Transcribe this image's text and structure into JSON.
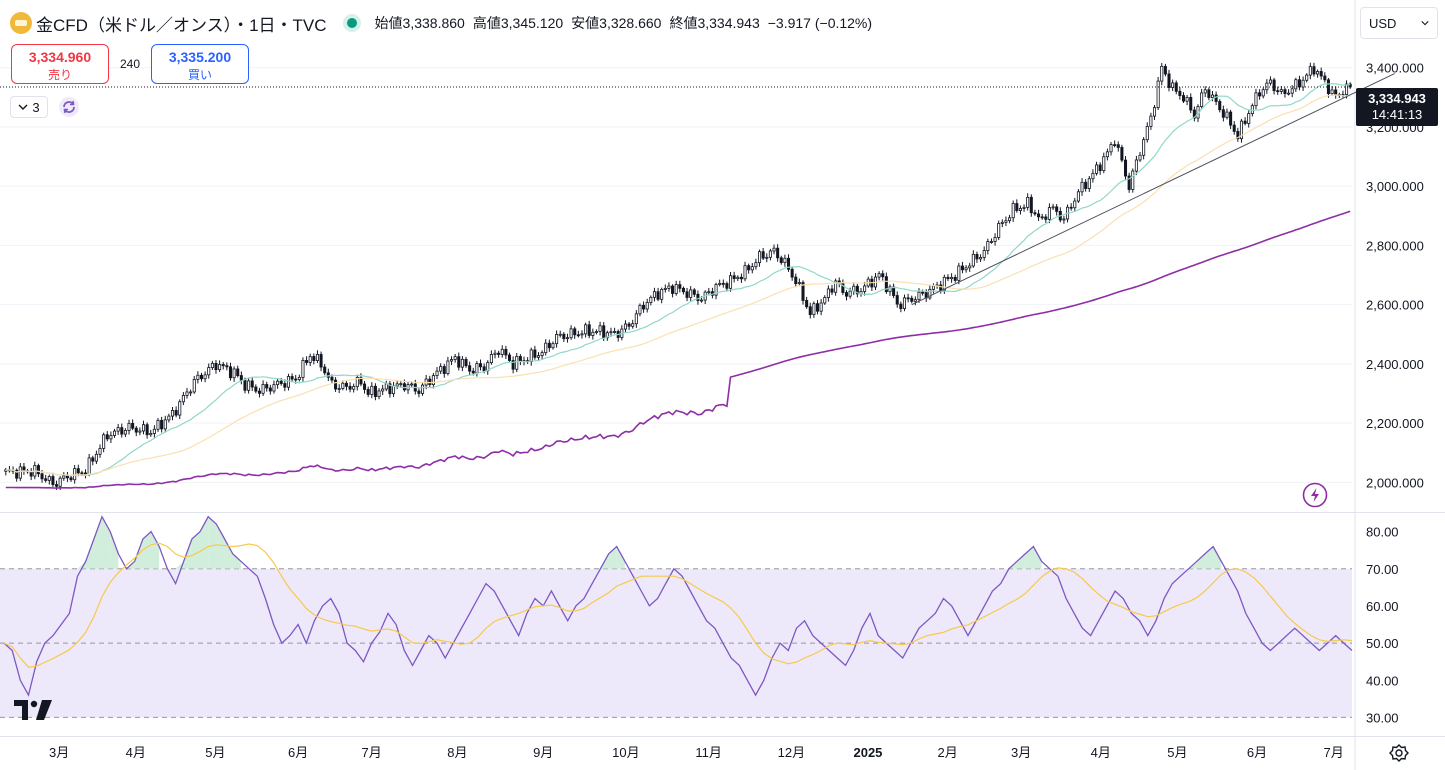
{
  "header": {
    "title": "金CFD（米ドル／オンス）・1日・TVC",
    "open": "始値3,338.860",
    "high": "高値3,345.120",
    "low": "安値3,328.660",
    "close": "終値3,334.943",
    "change": "−3.917 (−0.12%)"
  },
  "trade": {
    "sell_price": "3,334.960",
    "sell_label": "売り",
    "spread": "240",
    "buy_price": "3,335.200",
    "buy_label": "買い"
  },
  "indicators_chip": "3",
  "currency": "USD",
  "last_price": {
    "price": "3,334.943",
    "countdown": "14:41:13"
  },
  "colors": {
    "up": "#131722",
    "down": "#131722",
    "ma_short": "#8fd8c8",
    "ma_mid": "#fbe0b0",
    "ma_long": "#8e2da6",
    "rsi": "#7e57c2",
    "rsi_ma": "#f7c94b",
    "rsi_band": "#ede9fa"
  },
  "icons": [
    "logo-icon",
    "status-dot-icon",
    "chevron-down-icon",
    "refresh-icon",
    "lightning-icon",
    "settings-icon",
    "tradingview-logo"
  ],
  "chart_data": [
    {
      "type": "candlestick",
      "title": "",
      "x_ticks": [
        "3月",
        "4月",
        "5月",
        "6月",
        "7月",
        "8月",
        "9月",
        "10月",
        "11月",
        "12月",
        "2025",
        "2月",
        "3月",
        "4月",
        "5月",
        "6月",
        "7月"
      ],
      "y_ticks": [
        "2,000.000",
        "2,200.000",
        "2,400.000",
        "2,600.000",
        "2,800.000",
        "3,000.000",
        "3,200.000",
        "3,400.000"
      ],
      "ylim": [
        1900,
        3480
      ],
      "last": 3334.943,
      "anchors": [
        [
          0,
          2035
        ],
        [
          8,
          2038
        ],
        [
          13,
          1995
        ],
        [
          18,
          2025
        ],
        [
          22,
          2040
        ],
        [
          28,
          2160
        ],
        [
          34,
          2185
        ],
        [
          40,
          2170
        ],
        [
          46,
          2230
        ],
        [
          52,
          2340
        ],
        [
          58,
          2400
        ],
        [
          63,
          2370
        ],
        [
          66,
          2330
        ],
        [
          70,
          2310
        ],
        [
          76,
          2335
        ],
        [
          80,
          2350
        ],
        [
          84,
          2430
        ],
        [
          87,
          2400
        ],
        [
          90,
          2330
        ],
        [
          94,
          2320
        ],
        [
          98,
          2340
        ],
        [
          100,
          2300
        ],
        [
          106,
          2320
        ],
        [
          110,
          2330
        ],
        [
          114,
          2310
        ],
        [
          118,
          2360
        ],
        [
          124,
          2420
        ],
        [
          128,
          2380
        ],
        [
          132,
          2390
        ],
        [
          136,
          2450
        ],
        [
          140,
          2400
        ],
        [
          144,
          2420
        ],
        [
          148,
          2440
        ],
        [
          152,
          2490
        ],
        [
          156,
          2500
        ],
        [
          160,
          2510
        ],
        [
          164,
          2510
        ],
        [
          168,
          2500
        ],
        [
          172,
          2530
        ],
        [
          176,
          2600
        ],
        [
          180,
          2640
        ],
        [
          184,
          2660
        ],
        [
          188,
          2640
        ],
        [
          192,
          2620
        ],
        [
          196,
          2660
        ],
        [
          200,
          2680
        ],
        [
          204,
          2710
        ],
        [
          208,
          2760
        ],
        [
          212,
          2780
        ],
        [
          215,
          2740
        ],
        [
          218,
          2680
        ],
        [
          222,
          2570
        ],
        [
          226,
          2620
        ],
        [
          229,
          2680
        ],
        [
          231,
          2640
        ],
        [
          236,
          2650
        ],
        [
          241,
          2700
        ],
        [
          244,
          2650
        ],
        [
          246,
          2600
        ],
        [
          250,
          2620
        ],
        [
          254,
          2640
        ],
        [
          258,
          2670
        ],
        [
          262,
          2700
        ],
        [
          266,
          2740
        ],
        [
          270,
          2780
        ],
        [
          274,
          2860
        ],
        [
          278,
          2920
        ],
        [
          282,
          2940
        ],
        [
          286,
          2880
        ],
        [
          288,
          2930
        ],
        [
          292,
          2890
        ],
        [
          296,
          2980
        ],
        [
          300,
          3040
        ],
        [
          304,
          3110
        ],
        [
          306,
          3160
        ],
        [
          310,
          3000
        ],
        [
          313,
          3120
        ],
        [
          316,
          3230
        ],
        [
          319,
          3400
        ],
        [
          322,
          3330
        ],
        [
          325,
          3300
        ],
        [
          328,
          3240
        ],
        [
          331,
          3330
        ],
        [
          334,
          3280
        ],
        [
          337,
          3230
        ],
        [
          340,
          3170
        ],
        [
          343,
          3250
        ],
        [
          346,
          3320
        ],
        [
          349,
          3350
        ],
        [
          352,
          3310
        ],
        [
          355,
          3330
        ],
        [
          358,
          3360
        ],
        [
          361,
          3400
        ],
        [
          364,
          3350
        ],
        [
          367,
          3300
        ],
        [
          370,
          3335
        ]
      ],
      "moving_averages": [
        {
          "period": 20,
          "color": "#8fd8c8"
        },
        {
          "period": 50,
          "color": "#fbe0b0"
        },
        {
          "period": 200,
          "color": "#8e2da6"
        }
      ],
      "trendline": [
        [
          250,
          2600
        ],
        [
          375,
          3360
        ]
      ]
    },
    {
      "type": "line",
      "title": "",
      "y_ticks": [
        "30.00",
        "40.00",
        "50.00",
        "60.00",
        "70.00",
        "80.00"
      ],
      "ylim": [
        25,
        85
      ],
      "band": [
        30,
        70
      ],
      "series": [
        {
          "values": [
            50,
            48,
            40,
            36,
            45,
            50,
            52,
            55,
            58,
            68,
            72,
            78,
            84,
            80,
            74,
            70,
            72,
            78,
            80,
            76,
            70,
            66,
            72,
            78,
            80,
            84,
            82,
            78,
            74,
            72,
            70,
            68,
            62,
            55,
            50,
            52,
            55,
            50,
            56,
            60,
            62,
            58,
            50,
            48,
            45,
            50,
            53,
            58,
            55,
            48,
            44,
            48,
            52,
            50,
            46,
            50,
            54,
            58,
            62,
            66,
            64,
            60,
            56,
            52,
            58,
            62,
            60,
            64,
            60,
            56,
            60,
            62,
            66,
            70,
            74,
            76,
            72,
            68,
            64,
            60,
            62,
            66,
            70,
            68,
            64,
            60,
            56,
            54,
            50,
            46,
            44,
            40,
            36,
            40,
            46,
            50,
            48,
            54,
            56,
            52,
            50,
            48,
            46,
            44,
            48,
            54,
            58,
            52,
            50,
            48,
            46,
            50,
            54,
            56,
            58,
            62,
            60,
            56,
            52,
            56,
            60,
            64,
            66,
            70,
            72,
            74,
            76,
            72,
            70,
            68,
            62,
            58,
            54,
            52,
            56,
            60,
            64,
            62,
            58,
            56,
            52,
            56,
            62,
            66,
            68,
            70,
            72,
            74,
            76,
            72,
            68,
            64,
            58,
            54,
            50,
            48,
            50,
            52,
            54,
            52,
            50,
            48,
            50,
            52,
            50,
            48
          ]
        }
      ]
    }
  ]
}
